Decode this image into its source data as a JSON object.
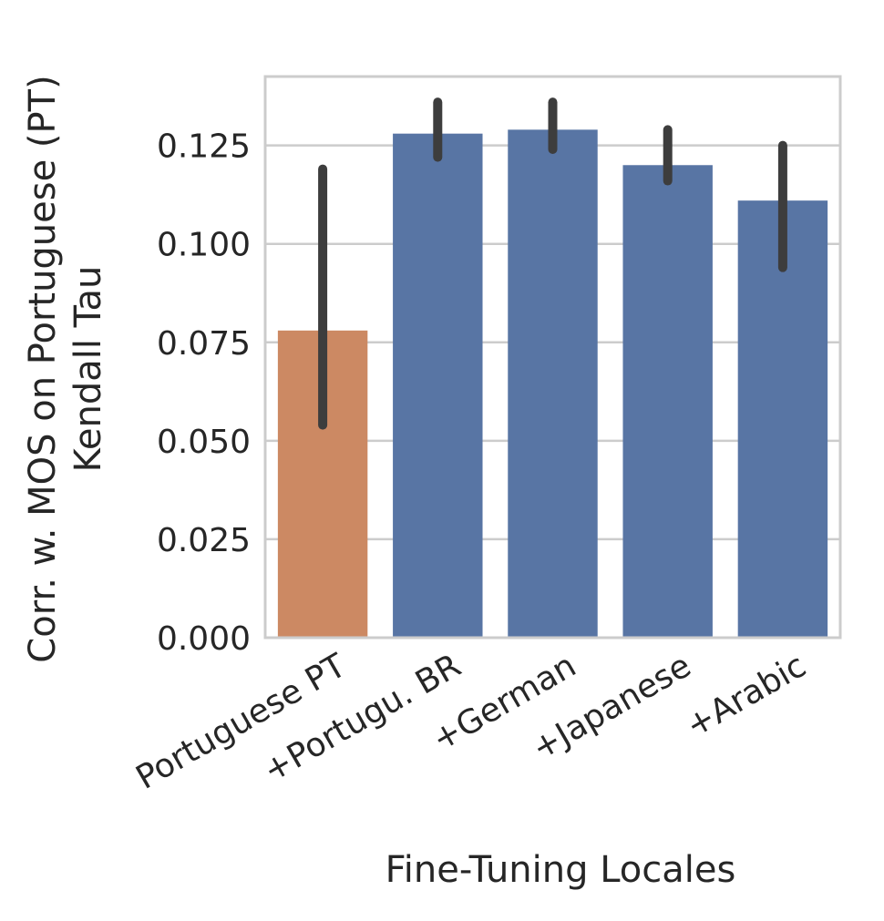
{
  "chart_data": {
    "type": "bar",
    "xlabel": "Fine-Tuning Locales",
    "ylabel_lines": [
      "Corr. w. MOS on Portuguese (PT)",
      "Kendall Tau"
    ],
    "categories": [
      "Portuguese PT",
      "+Portugu. BR",
      "+German",
      "+Japanese",
      "+Arabic"
    ],
    "values": [
      0.078,
      0.128,
      0.129,
      0.12,
      0.111
    ],
    "error_low": [
      0.054,
      0.122,
      0.124,
      0.116,
      0.094
    ],
    "error_high": [
      0.119,
      0.136,
      0.136,
      0.129,
      0.125
    ],
    "bar_colors": [
      "#cc8963",
      "#5875a4",
      "#5875a4",
      "#5875a4",
      "#5875a4"
    ],
    "error_bar_color": "#3d3d3d",
    "grid_color": "#cccccc",
    "spine_color": "#cccccc",
    "ylim": [
      0,
      0.1425
    ],
    "yticks": [
      0.0,
      0.025,
      0.05,
      0.075,
      0.1,
      0.125
    ],
    "ytick_labels": [
      "0.000",
      "0.025",
      "0.050",
      "0.075",
      "0.100",
      "0.125"
    ],
    "grid": true
  }
}
